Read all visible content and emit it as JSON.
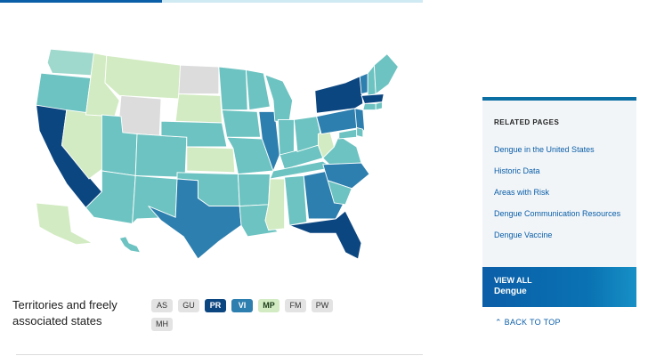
{
  "colors": {
    "level_gray": "#dcdcdc",
    "level_lightest": "#d2ebc2",
    "level_light": "#9fd8cc",
    "level_mid": "#6cc3c1",
    "level_dark": "#2d7faf",
    "level_darkest": "#0c4680",
    "accent_blue": "#0b5ea8"
  },
  "territories": {
    "label": "Territories and freely associated states",
    "badges": [
      {
        "code": "AS",
        "bg": "#e3e3e3",
        "fg": "#333333"
      },
      {
        "code": "GU",
        "bg": "#e3e3e3",
        "fg": "#333333"
      },
      {
        "code": "PR",
        "bg": "#0c4680",
        "fg": "#ffffff"
      },
      {
        "code": "VI",
        "bg": "#2d7faf",
        "fg": "#ffffff"
      },
      {
        "code": "MP",
        "bg": "#d2ebc2",
        "fg": "#1c3d1c"
      },
      {
        "code": "FM",
        "bg": "#e3e3e3",
        "fg": "#333333"
      },
      {
        "code": "PW",
        "bg": "#e3e3e3",
        "fg": "#333333"
      },
      {
        "code": "MH",
        "bg": "#e3e3e3",
        "fg": "#333333"
      }
    ]
  },
  "sidebar": {
    "title": "RELATED PAGES",
    "links": [
      "Dengue in the United States",
      "Historic Data",
      "Areas with Risk",
      "Dengue Communication Resources",
      "Dengue Vaccine"
    ],
    "view_all_line1": "VIEW ALL",
    "view_all_line2": "Dengue"
  },
  "back_to_top": "BACK TO TOP",
  "map_levels": {
    "WA": "light",
    "OR": "mid",
    "CA": "darkest",
    "NV": "lightest",
    "ID": "lightest",
    "MT": "lightest",
    "WY": "gray",
    "UT": "mid",
    "AZ": "mid",
    "CO": "mid",
    "NM": "mid",
    "ND": "gray",
    "SD": "lightest",
    "NE": "mid",
    "KS": "lightest",
    "OK": "mid",
    "TX": "dark",
    "MN": "mid",
    "IA": "mid",
    "MO": "mid",
    "AR": "mid",
    "LA": "mid",
    "WI": "mid",
    "IL": "dark",
    "MS": "lightest",
    "AL": "mid",
    "MI": "mid",
    "IN": "mid",
    "KY": "mid",
    "TN": "mid",
    "GA": "dark",
    "FL": "darkest",
    "OH": "mid",
    "WV": "lightest",
    "VA": "mid",
    "NC": "dark",
    "SC": "mid",
    "PA": "dark",
    "NY": "darkest",
    "VT": "dark",
    "NH": "mid",
    "ME": "mid",
    "MA": "darkest",
    "CT": "mid",
    "NJ": "dark",
    "DE": "mid",
    "MD": "mid",
    "RI": "mid",
    "AK": "lightest",
    "HI": "mid"
  }
}
